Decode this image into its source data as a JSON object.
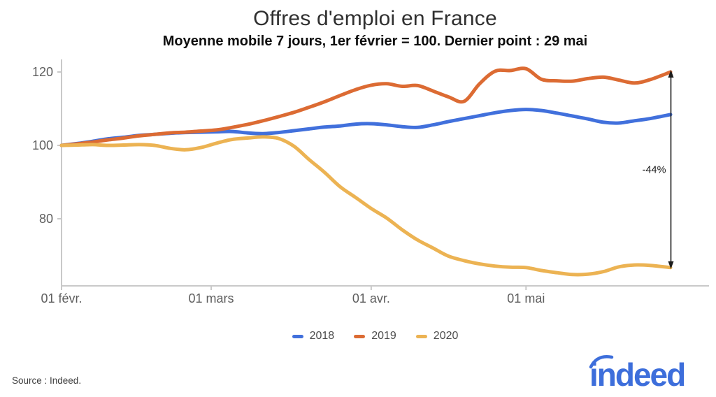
{
  "header": {
    "title": "Offres d'emploi en France",
    "subtitle": "Moyenne mobile 7 jours, 1er février = 100. Dernier point : 29 mai"
  },
  "chart_data": {
    "type": "line",
    "x_unit": "days_from_01_fevrier",
    "x": [
      0,
      3,
      6,
      9,
      12,
      15,
      18,
      21,
      24,
      27,
      30,
      33,
      36,
      39,
      42,
      45,
      48,
      51,
      54,
      57,
      60,
      63,
      66,
      69,
      72,
      75,
      78,
      81,
      84,
      87,
      90,
      93,
      96,
      99,
      102,
      105,
      108,
      111,
      114,
      118
    ],
    "series": [
      {
        "name": "2018",
        "color": "#4170dc",
        "values": [
          100,
          100.5,
          101.1,
          101.8,
          102.2,
          102.7,
          103.0,
          103.3,
          103.5,
          103.6,
          103.7,
          103.8,
          103.4,
          103.2,
          103.5,
          104.0,
          104.5,
          105.0,
          105.3,
          105.8,
          105.9,
          105.6,
          105.1,
          104.9,
          105.6,
          106.5,
          107.3,
          108.1,
          108.9,
          109.5,
          109.8,
          109.5,
          108.8,
          108.0,
          107.2,
          106.3,
          106.1,
          106.7,
          107.3,
          108.4
        ]
      },
      {
        "name": "2019",
        "color": "#dc6b33",
        "values": [
          100,
          100.4,
          100.9,
          101.5,
          102.0,
          102.6,
          103.0,
          103.4,
          103.6,
          103.9,
          104.2,
          104.9,
          105.7,
          106.7,
          107.8,
          109.0,
          110.4,
          111.9,
          113.6,
          115.2,
          116.4,
          116.8,
          116.1,
          116.3,
          114.8,
          113.2,
          112.0,
          116.8,
          120.2,
          120.4,
          120.9,
          118.0,
          117.6,
          117.5,
          118.2,
          118.6,
          117.8,
          117.0,
          117.9,
          120.0
        ]
      },
      {
        "name": "2020",
        "color": "#ecb353",
        "values": [
          100,
          100.1,
          100.2,
          100.0,
          100.1,
          100.2,
          100.0,
          99.2,
          98.8,
          99.4,
          100.6,
          101.6,
          102.0,
          102.3,
          101.9,
          99.8,
          96.1,
          92.6,
          88.7,
          85.8,
          82.8,
          80.2,
          77.0,
          74.2,
          72.0,
          69.8,
          68.6,
          67.7,
          67.1,
          66.8,
          66.7,
          65.9,
          65.3,
          64.8,
          64.9,
          65.6,
          66.9,
          67.4,
          67.3,
          66.7
        ]
      }
    ],
    "x_ticks": [
      {
        "day": 0,
        "label": "01 févr."
      },
      {
        "day": 29,
        "label": "01 mars"
      },
      {
        "day": 60,
        "label": "01 avr."
      },
      {
        "day": 90,
        "label": "01 mai"
      }
    ],
    "y_ticks": [
      80,
      100,
      120
    ],
    "xlim": [
      0,
      118
    ],
    "ylim": [
      61.5,
      123
    ],
    "grid": false,
    "legend_position": "bottom-center",
    "annotation": {
      "text": "-44%",
      "at_day": 118,
      "from_series": "2019",
      "to_series": "2020"
    }
  },
  "footer": {
    "source": "Source : Indeed.",
    "logo_text": "indeed"
  },
  "colors": {
    "axis": "#c9c9c9",
    "tick_label": "#5e5e5e",
    "legend_label": "#4c4c4c",
    "annotation": "#1c1c1c",
    "logo_blue": "#3d6edb"
  }
}
